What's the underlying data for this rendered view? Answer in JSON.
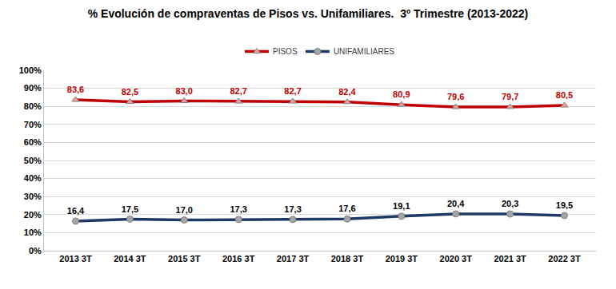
{
  "chart_data": {
    "type": "line",
    "title": "% Evolución de compraventas de Pisos vs. Unifamiliares.  3º Trimestre (2013-2022)",
    "categories": [
      "2013 3T",
      "2014 3T",
      "2015 3T",
      "2016 3T",
      "2017 3T",
      "2018 3T",
      "2019 3T",
      "2020 3T",
      "2021 3T",
      "2022 3T"
    ],
    "series": [
      {
        "name": "PISOS",
        "color": "#c00000",
        "marker": "triangle-up",
        "values": [
          83.6,
          82.5,
          83.0,
          82.7,
          82.7,
          82.4,
          80.9,
          79.6,
          79.7,
          80.5
        ],
        "value_labels": [
          "83,6",
          "82,5",
          "83,0",
          "82,7",
          "82,7",
          "82,4",
          "80,9",
          "79,6",
          "79,7",
          "80,5"
        ]
      },
      {
        "name": "UNIFAMILIARES",
        "color": "#1f3864",
        "marker": "circle",
        "values": [
          16.4,
          17.5,
          17.0,
          17.3,
          17.3,
          17.6,
          19.1,
          20.4,
          20.3,
          19.5
        ],
        "value_labels": [
          "16,4",
          "17,5",
          "17,0",
          "17,3",
          "17,3",
          "17,6",
          "19,1",
          "20,4",
          "20,3",
          "19,5"
        ]
      }
    ],
    "ylim": [
      0,
      100
    ],
    "yticks": [
      {
        "value": 0,
        "label": "0%"
      },
      {
        "value": 10,
        "label": "10%"
      },
      {
        "value": 20,
        "label": "20%"
      },
      {
        "value": 30,
        "label": "30%"
      },
      {
        "value": 40,
        "label": "40%"
      },
      {
        "value": 50,
        "label": "50%"
      },
      {
        "value": 60,
        "label": "60%"
      },
      {
        "value": 70,
        "label": "70%"
      },
      {
        "value": 80,
        "label": "80%"
      },
      {
        "value": 90,
        "label": "90%"
      },
      {
        "value": 100,
        "label": "100%"
      }
    ],
    "grid": true,
    "legend": "top",
    "data_labels": true
  }
}
